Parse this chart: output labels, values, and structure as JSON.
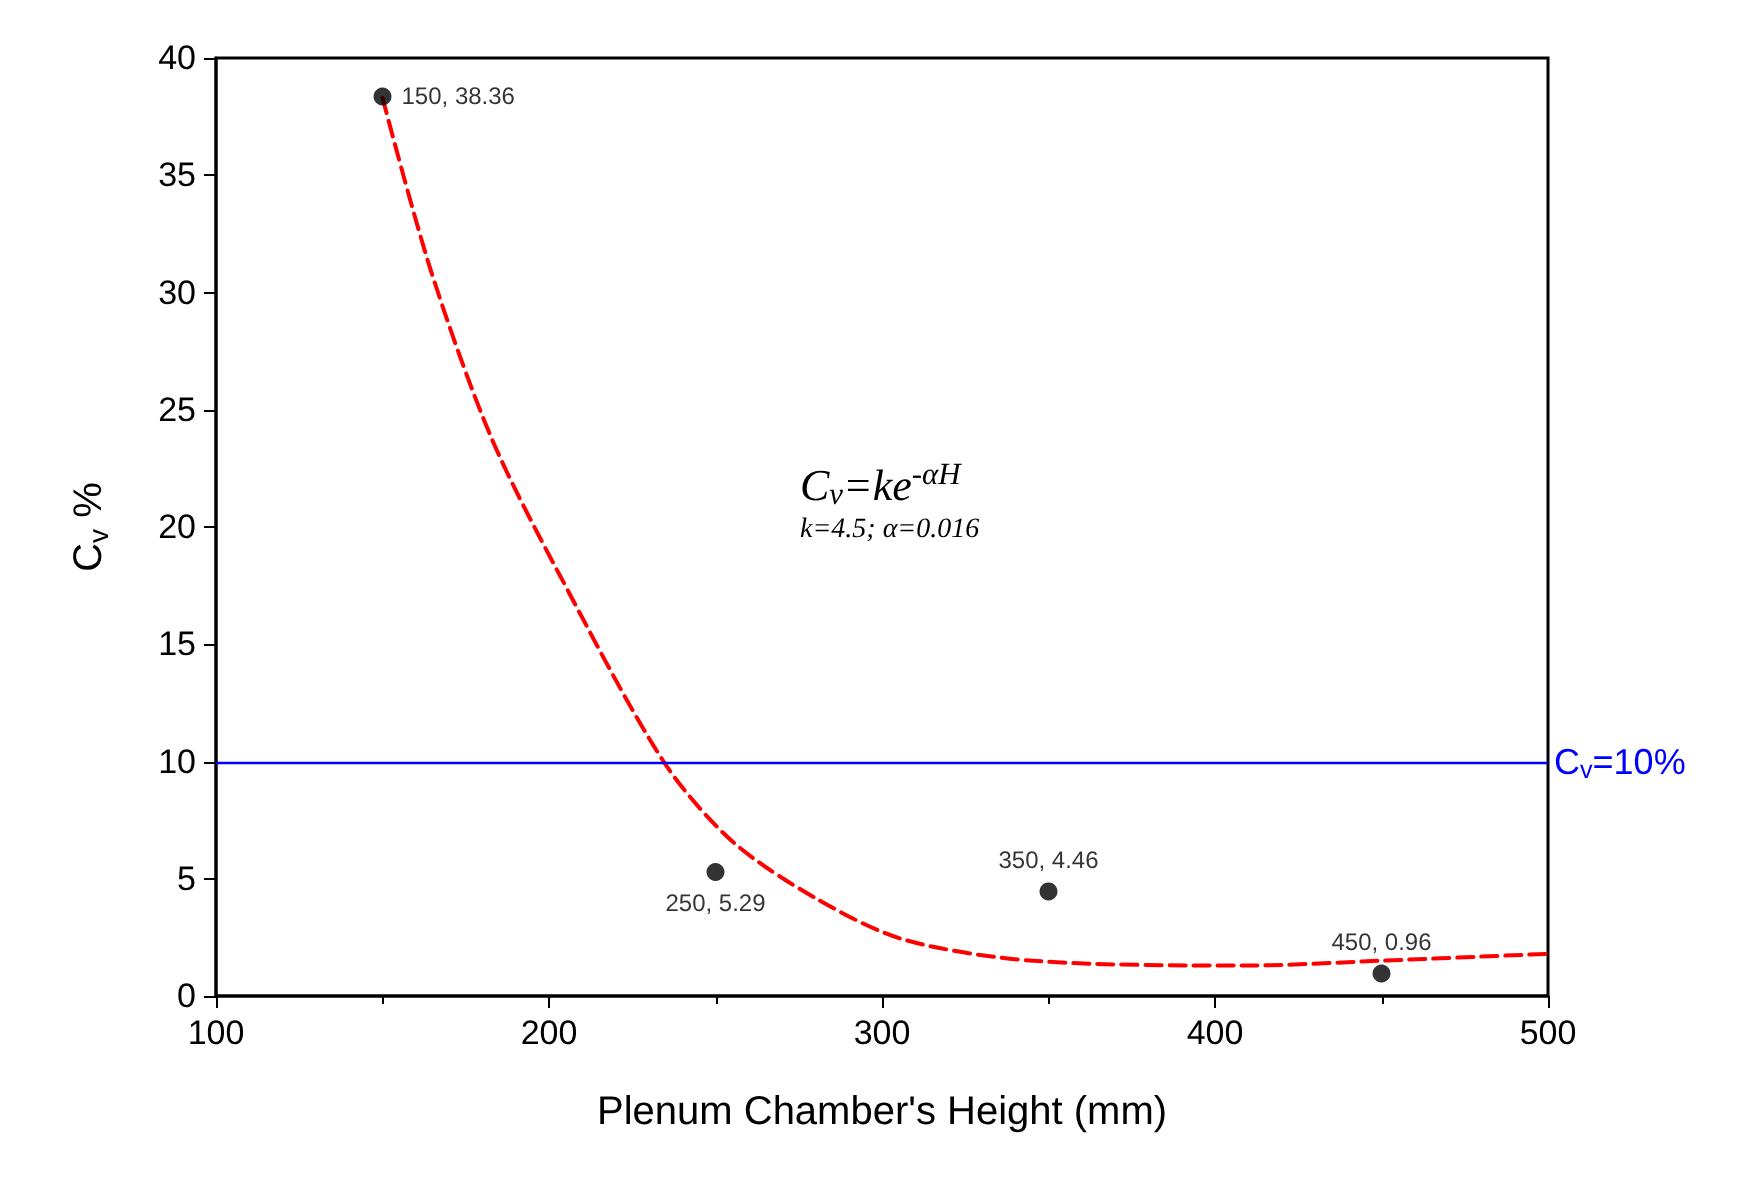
{
  "chart_data": {
    "type": "scatter",
    "xlabel": "Plenum Chamber's Height (mm)",
    "ylabel": "C$_{v}$ %",
    "xlim": [
      100,
      500
    ],
    "xticks": [
      100,
      200,
      300,
      400,
      500
    ],
    "ylim": [
      0,
      40
    ],
    "yticks": [
      0,
      5,
      10,
      15,
      20,
      25,
      30,
      35,
      40
    ],
    "grid": false,
    "series": [
      {
        "color": "#000000",
        "marker": "circle",
        "x": [
          150,
          250,
          350,
          450
        ],
        "values": [
          38.36,
          5.29,
          4.46,
          0.96
        ],
        "value_labels": [
          "150, 38.36",
          "250, 5.29",
          "350, 4.46",
          "450, 0.96"
        ]
      },
      {
        "type": "line",
        "color": "#ff0000",
        "line_style": "dashed",
        "marker": "none",
        "x": [
          150,
          164.6,
          182.7,
          203.4,
          234.4,
          255,
          280.9,
          306.7,
          345.5,
          410,
          449,
          500
        ],
        "values": [
          38.3,
          30.9,
          23.8,
          17.9,
          10,
          6.6,
          4.1,
          2.4,
          1.5,
          1.3,
          1.5,
          1.8
        ]
      }
    ],
    "ref_lines": [
      {
        "axis": "y",
        "value": 10,
        "label": "C$_{v}$=10%",
        "color": "#0000ff",
        "line_style": "solid"
      }
    ],
    "annotations": [
      "C$_{v}$=ke$^{-αH}$",
      "k=4.5; α=0.016"
    ]
  }
}
